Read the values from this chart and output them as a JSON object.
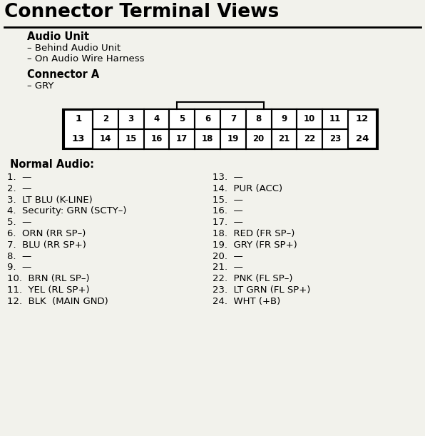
{
  "title": "Connector Terminal Views",
  "section1_bold": "Audio Unit",
  "section1_lines": [
    "– Behind Audio Unit",
    "– On Audio Wire Harness"
  ],
  "section2_bold": "Connector A",
  "section2_lines": [
    "– GRY"
  ],
  "section3_bold": "Normal Audio:",
  "left_items": [
    "1.  —",
    "2.  —",
    "3.  LT BLU (K-LINE)",
    "4.  Security: GRN (SCTY–)",
    "5.  —",
    "6.  ORN (RR SP–)",
    "7.  BLU (RR SP+)",
    "8.  —",
    "9.  —",
    "10.  BRN (RL SP–)",
    "11.  YEL (RL SP+)",
    "12.  BLK  (MAIN GND)"
  ],
  "right_items": [
    "13.  —",
    "14.  PUR (ACC)",
    "15.  —",
    "16.  —",
    "17.  —",
    "18.  RED (FR SP–)",
    "19.  GRY (FR SP+)",
    "20.  —",
    "21.  —",
    "22.  PNK (FL SP–)",
    "23.  LT GRN (FL SP+)",
    "24.  WHT (+B)"
  ],
  "bg_color": "#f2f2ec",
  "title_fontsize": 19,
  "body_fontsize": 9.5,
  "bold_fontsize": 10.5,
  "connector_top_labels": [
    "1",
    "2",
    "3",
    "4",
    "5",
    "6",
    "7",
    "8",
    "9",
    "10",
    "11",
    "12"
  ],
  "connector_bot_labels": [
    "13",
    "14",
    "15",
    "16",
    "17",
    "18",
    "19",
    "20",
    "21",
    "22",
    "23",
    "24"
  ]
}
